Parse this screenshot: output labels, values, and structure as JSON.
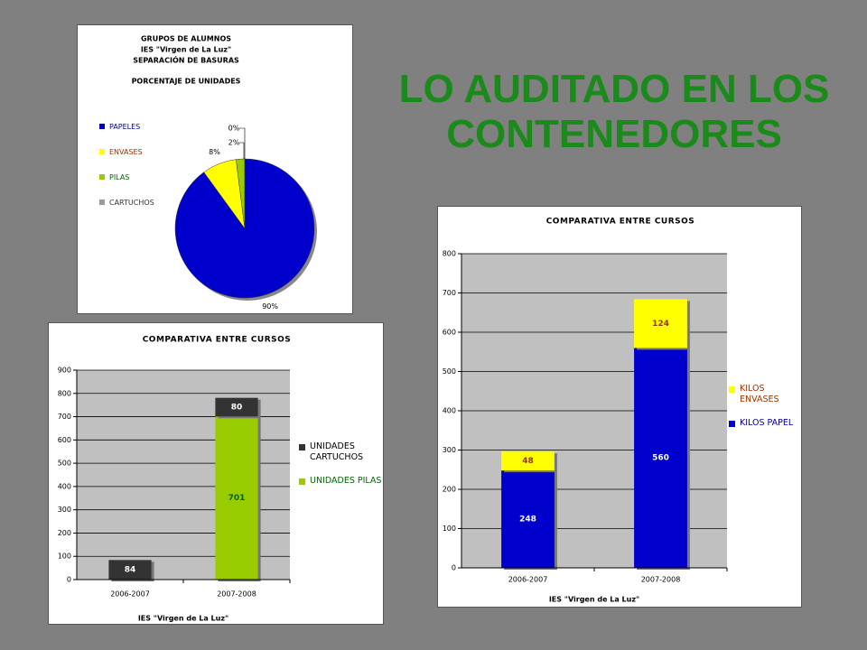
{
  "title": "LO AUDITADO EN LOS CONTENEDORES",
  "chart_data": [
    {
      "type": "pie",
      "title": [
        "GRUPOS DE ALUMNOS",
        "IES \"Virgen de La Luz\"",
        "SEPARACIÓN DE BASURAS"
      ],
      "subtitle": "PORCENTAJE DE UNIDADES",
      "categories": [
        "PAPELES",
        "ENVASES",
        "PILAS",
        "CARTUCHOS"
      ],
      "values": [
        90,
        8,
        2,
        0
      ],
      "value_labels": [
        "90%",
        "8%",
        "2%",
        "0%"
      ],
      "colors": [
        "#0000cc",
        "#ffff00",
        "#99cc00",
        "#999999"
      ],
      "legend_colors": [
        "#000099",
        "#993300",
        "#006600",
        "#333333"
      ],
      "legend": "left"
    },
    {
      "type": "stacked_bar",
      "title": "COMPARATIVA ENTRE CURSOS",
      "x_label": "IES \"Virgen de La Luz\"",
      "categories": [
        "2006-2007",
        "2007-2008"
      ],
      "series": [
        {
          "name": "UNIDADES PILAS",
          "color": "#99cc00",
          "label_color": "#006600",
          "legend_color": "#006600",
          "values": [
            null,
            701
          ]
        },
        {
          "name": "UNIDADES CARTUCHOS",
          "color": "#333333",
          "label_color": "#ffffff",
          "legend_color": "#000000",
          "values": [
            84,
            80
          ]
        }
      ],
      "ylim": [
        0,
        900
      ],
      "yticks": [
        0,
        100,
        200,
        300,
        400,
        500,
        600,
        700,
        800,
        900
      ],
      "grid": true,
      "legend": "right"
    },
    {
      "type": "stacked_bar",
      "title": "COMPARATIVA ENTRE CURSOS",
      "x_label": "IES \"Virgen de La Luz\"",
      "categories": [
        "2006-2007",
        "2007-2008"
      ],
      "series": [
        {
          "name": "KILOS PAPEL",
          "color": "#0000cc",
          "label_color": "#ffffff",
          "legend_color": "#000099",
          "values": [
            248,
            560
          ]
        },
        {
          "name": "KILOS ENVASES",
          "color": "#ffff00",
          "label_color": "#993300",
          "legend_color": "#993300",
          "values": [
            48,
            124
          ]
        }
      ],
      "ylim": [
        0,
        800
      ],
      "yticks": [
        0,
        100,
        200,
        300,
        400,
        500,
        600,
        700,
        800
      ],
      "grid": true,
      "legend": "right"
    }
  ]
}
